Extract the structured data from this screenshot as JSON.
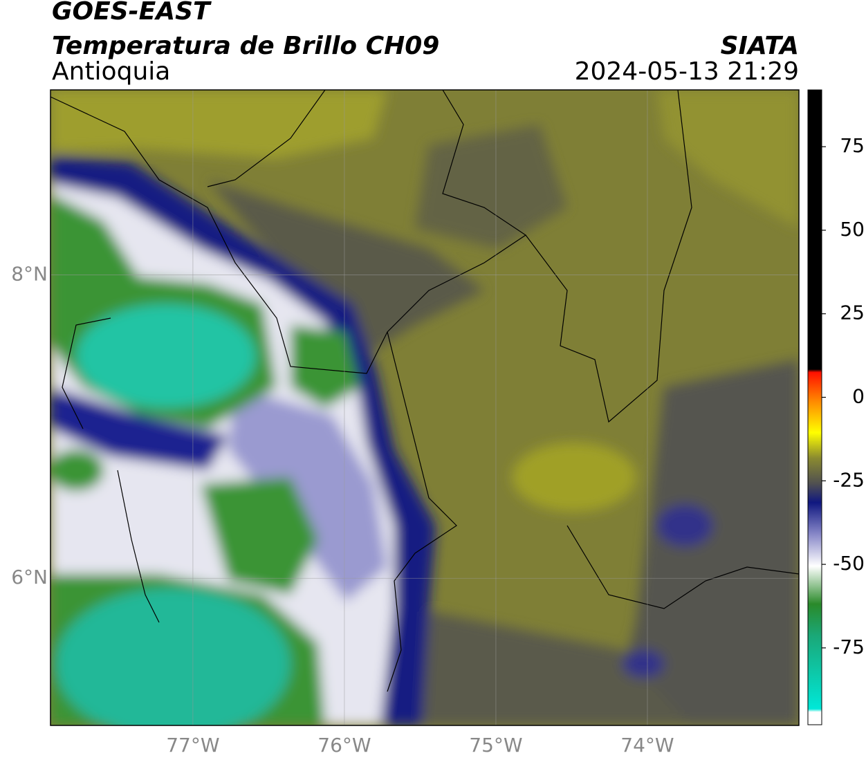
{
  "header": {
    "title": "GOES-EAST",
    "subtitle": "Temperatura de Brillo CH09",
    "region": "Antioquia",
    "source": "SIATA",
    "datetime": "2024-05-13 21:29"
  },
  "map": {
    "xlim": [
      -77.94,
      -73.0
    ],
    "ylim": [
      5.03,
      9.22
    ],
    "xticks": [
      {
        "value": -77,
        "label": "77°W"
      },
      {
        "value": -76,
        "label": "76°W"
      },
      {
        "value": -75,
        "label": "75°W"
      },
      {
        "value": -74,
        "label": "74°W"
      }
    ],
    "yticks": [
      {
        "value": 8,
        "label": "8°N"
      },
      {
        "value": 6,
        "label": "6°N"
      }
    ],
    "grid": true
  },
  "colorbar": {
    "lim": [
      -98,
      92
    ],
    "ticks": [
      75,
      50,
      25,
      0,
      -25,
      -50,
      -75
    ]
  }
}
